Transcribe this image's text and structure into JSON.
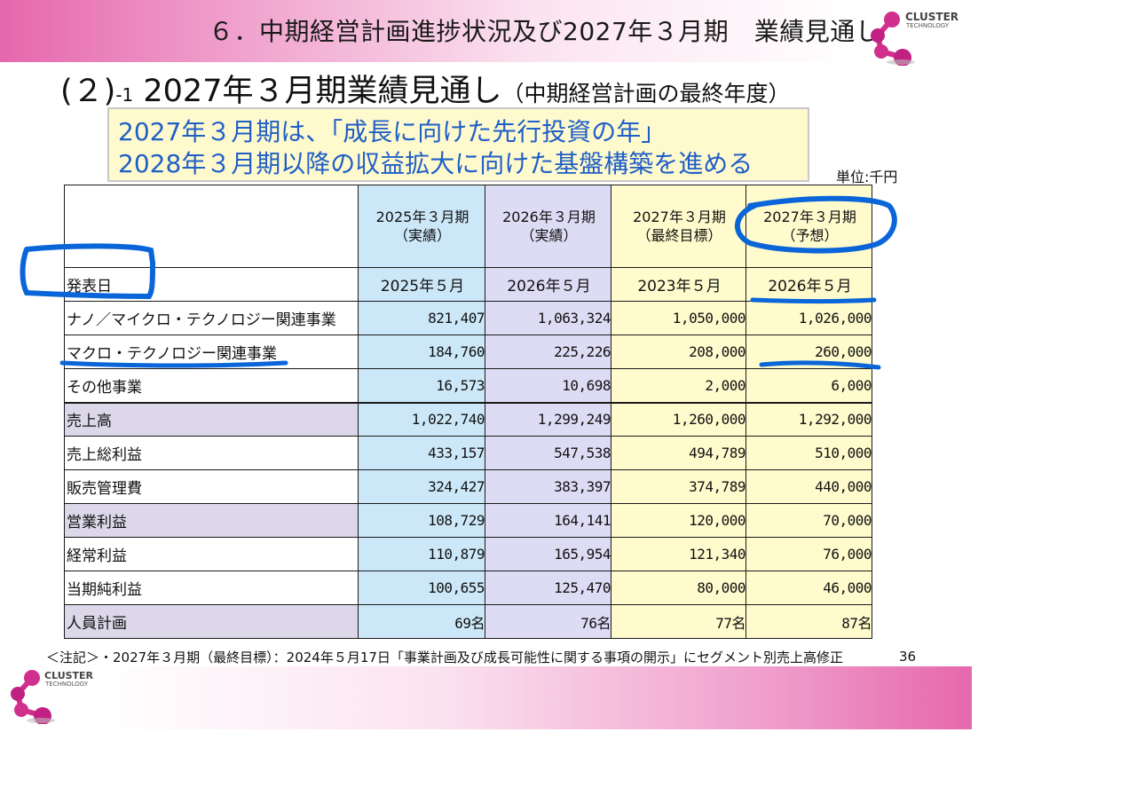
{
  "header": {
    "page_title": "６．中期経営計画進捗状況及び2027年３月期　業績見通し"
  },
  "logo": {
    "word": "CLUSTER",
    "sub": "TECHNOLOGY"
  },
  "section": {
    "main": "(２)",
    "index": "-1",
    "title": " 2027年３月期業績見通し",
    "subtitle": "（中期経営計画の最終年度）"
  },
  "callout": {
    "line1": "2027年３月期は、「成長に向けた先行投資の年」",
    "line2": "2028年３月期以降の収益拡大に向けた基盤構築を進める"
  },
  "unit": "単位:千円",
  "table": {
    "columns": [
      {
        "line1": "2025年３月期",
        "line2": "（実績）"
      },
      {
        "line1": "2026年３月期",
        "line2": "（実績）"
      },
      {
        "line1": "2027年３月期",
        "line2": "（最終目標）"
      },
      {
        "line1": "2027年３月期",
        "line2": "（予想）"
      }
    ],
    "date_row": {
      "label": "発表日",
      "values": [
        "2025年５月",
        "2026年５月",
        "2023年５月",
        "2026年５月"
      ]
    },
    "rows": [
      {
        "label": "ナノ／マイクロ・テクノロジー関連事業",
        "values": [
          "821,407",
          "1,063,324",
          "1,050,000",
          "1,026,000"
        ]
      },
      {
        "label": "マクロ・テクノロジー関連事業",
        "values": [
          "184,760",
          "225,226",
          "208,000",
          "260,000"
        ]
      },
      {
        "label": "その他事業",
        "values": [
          "16,573",
          "10,698",
          "2,000",
          "6,000"
        ]
      },
      {
        "label": "売上高",
        "values": [
          "1,022,740",
          "1,299,249",
          "1,260,000",
          "1,292,000"
        ]
      },
      {
        "label": "売上総利益",
        "values": [
          "433,157",
          "547,538",
          "494,789",
          "510,000"
        ]
      },
      {
        "label": "販売管理費",
        "values": [
          "324,427",
          "383,397",
          "374,789",
          "440,000"
        ]
      },
      {
        "label": "営業利益",
        "values": [
          "108,729",
          "164,141",
          "120,000",
          "70,000"
        ]
      },
      {
        "label": "経常利益",
        "values": [
          "110,879",
          "165,954",
          "121,340",
          "76,000"
        ]
      },
      {
        "label": "当期純利益",
        "values": [
          "100,655",
          "125,470",
          "80,000",
          "46,000"
        ]
      },
      {
        "label": "人員計画",
        "values": [
          "69名",
          "76名",
          "77名",
          "87名"
        ]
      }
    ]
  },
  "footnote": "＜注記＞・2027年３月期（最終目標）：2024年５月17日「事業計画及び成長可能性に関する事項の開示」にセグメント別売上高修正",
  "page_number": "36",
  "colors": {
    "brand_pink": "#e667ad",
    "callout_text": "#1f5fc7",
    "callout_bg": "#fffacd",
    "col_2025": "#cce8f8",
    "col_2026": "#dedcf5",
    "col_2027": "#fffbcd",
    "highlight_row": "#dcd8ea",
    "annotation_ink": "#0a66d8"
  }
}
